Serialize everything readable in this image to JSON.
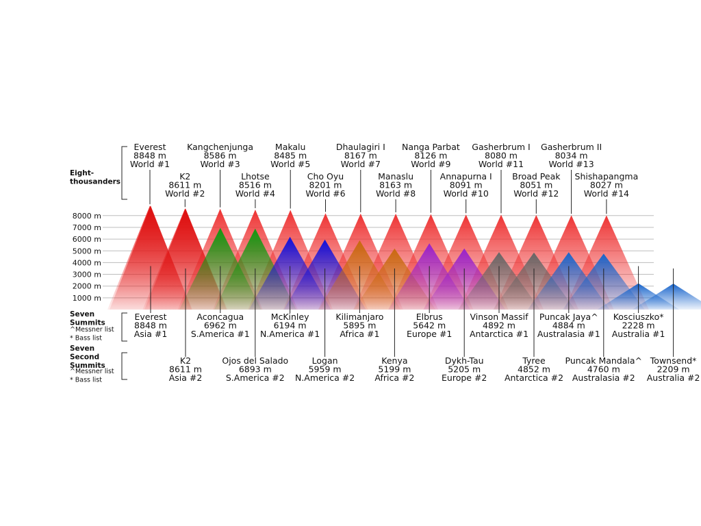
{
  "chart_data": {
    "type": "diagram",
    "y_unit": "m",
    "ylim": [
      0,
      9000
    ],
    "y_ticks": [
      {
        "value": 1000,
        "label": "1000 m"
      },
      {
        "value": 2000,
        "label": "2000 m"
      },
      {
        "value": 3000,
        "label": "3000 m"
      },
      {
        "value": 4000,
        "label": "4000 m"
      },
      {
        "value": 5000,
        "label": "5000 m"
      },
      {
        "value": 6000,
        "label": "6000 m"
      },
      {
        "value": 7000,
        "label": "7000 m"
      },
      {
        "value": 8000,
        "label": "8000 m"
      }
    ],
    "groups": {
      "eight_thousanders": {
        "title_lines": [
          "Eight-",
          "thousanders"
        ]
      },
      "seven_summits": {
        "title_lines": [
          "Seven",
          "Summits"
        ],
        "notes": [
          "^Messner list",
          "* Bass list"
        ]
      },
      "seven_second_summits": {
        "title_lines": [
          "Seven",
          "Second",
          "Summits"
        ],
        "notes": [
          "^Messner list",
          "* Bass list"
        ]
      }
    },
    "eight_thousanders": [
      {
        "name": "Everest",
        "height": "8848 m",
        "rank": "World #1",
        "elev": 8848,
        "row": 0
      },
      {
        "name": "K2",
        "height": "8611 m",
        "rank": "World #2",
        "elev": 8611,
        "row": 1
      },
      {
        "name": "Kangchenjunga",
        "height": "8586 m",
        "rank": "World #3",
        "elev": 8586,
        "row": 0
      },
      {
        "name": "Lhotse",
        "height": "8516 m",
        "rank": "World #4",
        "elev": 8516,
        "row": 1
      },
      {
        "name": "Makalu",
        "height": "8485 m",
        "rank": "World #5",
        "elev": 8485,
        "row": 0
      },
      {
        "name": "Cho Oyu",
        "height": "8201 m",
        "rank": "World #6",
        "elev": 8201,
        "row": 1
      },
      {
        "name": "Dhaulagiri I",
        "height": "8167 m",
        "rank": "World #7",
        "elev": 8167,
        "row": 0
      },
      {
        "name": "Manaslu",
        "height": "8163 m",
        "rank": "World #8",
        "elev": 8163,
        "row": 1
      },
      {
        "name": "Nanga Parbat",
        "height": "8126 m",
        "rank": "World #9",
        "elev": 8126,
        "row": 0
      },
      {
        "name": "Annapurna I",
        "height": "8091 m",
        "rank": "World #10",
        "elev": 8091,
        "row": 1
      },
      {
        "name": "Gasherbrum I",
        "height": "8080 m",
        "rank": "World #11",
        "elev": 8080,
        "row": 0
      },
      {
        "name": "Broad Peak",
        "height": "8051 m",
        "rank": "World #12",
        "elev": 8051,
        "row": 1
      },
      {
        "name": "Gasherbrum II",
        "height": "8034 m",
        "rank": "World #13",
        "elev": 8034,
        "row": 0
      },
      {
        "name": "Shishapangma",
        "height": "8027 m",
        "rank": "World #14",
        "elev": 8027,
        "row": 1
      }
    ],
    "continents": [
      {
        "color": "#dd1111",
        "summit": {
          "name": "Everest",
          "height": "8848 m",
          "rank": "Asia #1",
          "elev": 8848
        },
        "second": {
          "name": "K2",
          "height": "8611 m",
          "rank": "Asia #2",
          "elev": 8611
        }
      },
      {
        "color": "#119911",
        "summit": {
          "name": "Aconcagua",
          "height": "6962 m",
          "rank": "S.America #1",
          "elev": 6962
        },
        "second": {
          "name": "Ojos del Salado",
          "height": "6893 m",
          "rank": "S.America #2",
          "elev": 6893
        }
      },
      {
        "color": "#1111dd",
        "summit": {
          "name": "McKinley",
          "height": "6194 m",
          "rank": "N.America #1",
          "elev": 6194
        },
        "second": {
          "name": "Logan",
          "height": "5959 m",
          "rank": "N.America #2",
          "elev": 5959
        }
      },
      {
        "color": "#c96a10",
        "summit": {
          "name": "Kilimanjaro",
          "height": "5895 m",
          "rank": "Africa #1",
          "elev": 5895
        },
        "second": {
          "name": "Kenya",
          "height": "5199 m",
          "rank": "Africa #2",
          "elev": 5199
        }
      },
      {
        "color": "#9922cc",
        "summit": {
          "name": "Elbrus",
          "height": "5642 m",
          "rank": "Europe #1",
          "elev": 5642
        },
        "second": {
          "name": "Dykh-Tau",
          "height": "5205 m",
          "rank": "Europe #2",
          "elev": 5205
        }
      },
      {
        "color": "#666666",
        "summit": {
          "name": "Vinson Massif",
          "height": "4892 m",
          "rank": "Antarctica #1",
          "elev": 4892
        },
        "second": {
          "name": "Tyree",
          "height": "4852 m",
          "rank": "Antarctica #2",
          "elev": 4852
        }
      },
      {
        "color": "#1a66cc",
        "summit": {
          "name": "Puncak Jaya^",
          "height": "4884 m",
          "rank": "Australasia #1",
          "elev": 4884
        },
        "second": {
          "name": "Puncak Mandala^",
          "height": "4760 m",
          "rank": "Australasia #2",
          "elev": 4760
        }
      },
      {
        "color": "#1a66cc",
        "summit": {
          "name": "Kosciuszko*",
          "height": "2228 m",
          "rank": "Australia #1",
          "elev": 2228
        },
        "second": {
          "name": "Townsend*",
          "height": "2209 m",
          "rank": "Australia #2",
          "elev": 2209
        }
      }
    ],
    "eight_thousander_color": "#ee3333"
  }
}
